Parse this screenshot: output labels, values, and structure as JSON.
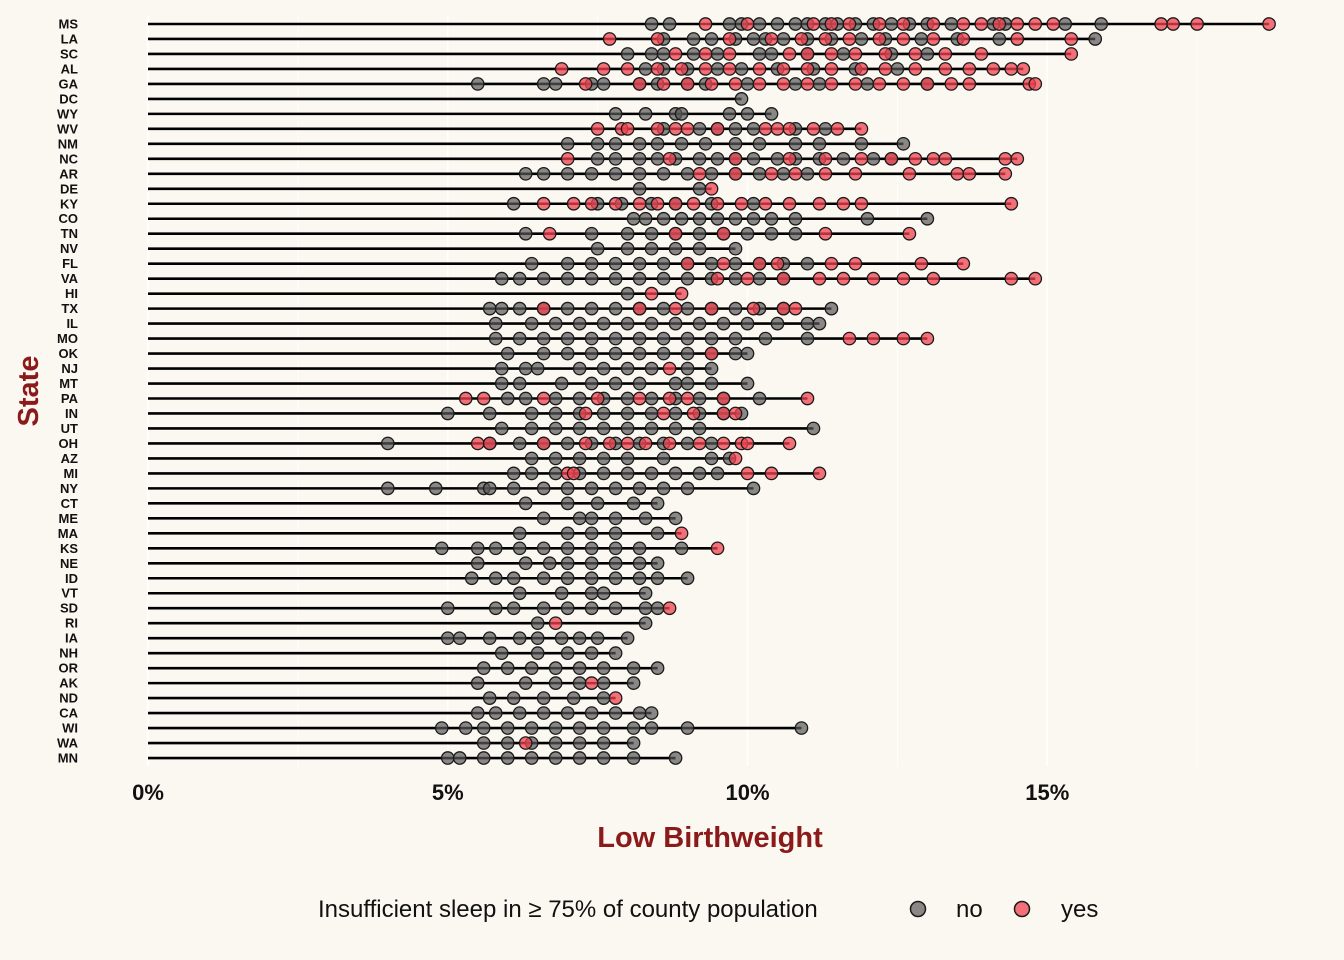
{
  "chart_data": {
    "type": "scatter",
    "title": "",
    "xlabel": "Low Birthweight",
    "ylabel": "State",
    "xlim": [
      0,
      19
    ],
    "x_ticks": [
      0,
      5,
      10,
      15
    ],
    "x_tick_labels": [
      "0%",
      "5%",
      "10%",
      "15%"
    ],
    "grid": true,
    "legend_position": "bottom",
    "legend": {
      "title": "Insufficient sleep in ≥ 75% of county population",
      "entries": [
        {
          "label": "no",
          "color": "#595959"
        },
        {
          "label": "yes",
          "color": "#f0434f"
        }
      ]
    },
    "colors": {
      "background": "#fbf8f1",
      "axis_title": "#8b1a1a",
      "no": "#595959",
      "yes": "#f0434f",
      "segment": "#000000"
    },
    "states": [
      {
        "state": "MS",
        "no": [
          8.4,
          8.7,
          9.7,
          9.9,
          10.2,
          10.5,
          10.8,
          11.0,
          11.3,
          11.5,
          11.8,
          12.1,
          12.4,
          12.7,
          13.0,
          13.4,
          14.1,
          14.3,
          15.3,
          15.9
        ],
        "yes": [
          9.3,
          10.0,
          11.1,
          11.4,
          11.7,
          12.2,
          12.6,
          13.1,
          13.6,
          13.9,
          14.2,
          14.5,
          14.8,
          15.1,
          16.9,
          17.1,
          17.5,
          18.7
        ]
      },
      {
        "state": "LA",
        "no": [
          8.6,
          9.1,
          9.4,
          9.8,
          10.1,
          10.3,
          10.6,
          11.0,
          11.4,
          11.9,
          12.3,
          12.9,
          13.5,
          14.2,
          15.8
        ],
        "yes": [
          7.7,
          8.5,
          9.7,
          10.4,
          10.9,
          11.3,
          11.7,
          12.2,
          12.6,
          13.1,
          13.6,
          14.5,
          15.4
        ]
      },
      {
        "state": "SC",
        "no": [
          8.0,
          8.4,
          8.6,
          9.1,
          9.5,
          10.2,
          10.4,
          11.0,
          11.6,
          12.4,
          13.0
        ],
        "yes": [
          8.8,
          9.3,
          9.7,
          10.7,
          11.0,
          11.4,
          11.8,
          12.3,
          12.8,
          13.3,
          13.9,
          15.4
        ]
      },
      {
        "state": "AL",
        "no": [
          8.3,
          8.6,
          9.0,
          9.5,
          9.9,
          10.5,
          11.1,
          11.8,
          12.5
        ],
        "yes": [
          6.9,
          7.6,
          8.0,
          8.5,
          8.9,
          9.3,
          9.7,
          10.2,
          10.6,
          11.0,
          11.4,
          11.9,
          12.3,
          12.8,
          13.3,
          13.7,
          14.1,
          14.4,
          14.6
        ]
      },
      {
        "state": "GA",
        "no": [
          5.5,
          6.6,
          6.8,
          7.4,
          7.6,
          8.2,
          8.5,
          9.0,
          9.3,
          10.0,
          10.8,
          11.2,
          12.0,
          13.0
        ],
        "yes": [
          7.3,
          8.2,
          8.6,
          9.0,
          9.4,
          9.8,
          10.2,
          10.6,
          11.0,
          11.4,
          11.8,
          12.2,
          12.6,
          13.0,
          13.4,
          13.7,
          14.7,
          14.8
        ]
      },
      {
        "state": "DC",
        "no": [
          9.9
        ],
        "yes": []
      },
      {
        "state": "WY",
        "no": [
          7.8,
          8.3,
          8.8,
          8.9,
          9.7,
          10.0,
          10.4
        ],
        "yes": []
      },
      {
        "state": "WV",
        "no": [
          8.6,
          9.2,
          9.5,
          9.8,
          10.1,
          10.8,
          11.3
        ],
        "yes": [
          7.5,
          7.9,
          8.0,
          8.5,
          8.8,
          9.0,
          9.5,
          10.3,
          10.5,
          10.7,
          11.1,
          11.5,
          11.9
        ]
      },
      {
        "state": "NM",
        "no": [
          7.0,
          7.5,
          7.8,
          8.2,
          8.5,
          8.9,
          9.3,
          9.8,
          10.2,
          10.8,
          11.2,
          11.9,
          12.6
        ],
        "yes": []
      },
      {
        "state": "NC",
        "no": [
          7.5,
          7.8,
          8.2,
          8.5,
          8.8,
          9.2,
          9.5,
          9.8,
          10.1,
          10.5,
          10.8,
          11.2,
          11.6,
          12.1,
          12.4
        ],
        "yes": [
          7.0,
          8.7,
          9.8,
          10.7,
          11.3,
          11.9,
          12.4,
          12.8,
          13.1,
          13.3,
          14.3,
          14.5
        ]
      },
      {
        "state": "AR",
        "no": [
          6.3,
          6.6,
          7.0,
          7.4,
          7.8,
          8.2,
          8.6,
          9.0,
          9.4,
          9.8,
          10.2,
          10.6,
          11.0
        ],
        "yes": [
          9.2,
          9.8,
          10.4,
          10.8,
          11.3,
          11.8,
          12.7,
          13.5,
          13.7,
          14.3
        ]
      },
      {
        "state": "DE",
        "no": [
          8.2,
          9.2
        ],
        "yes": [
          9.4
        ]
      },
      {
        "state": "KY",
        "no": [
          6.1,
          7.5,
          7.9,
          8.4,
          8.8,
          9.4,
          10.1
        ],
        "yes": [
          6.6,
          7.1,
          7.4,
          7.8,
          8.2,
          8.5,
          8.8,
          9.1,
          9.5,
          9.9,
          10.3,
          10.7,
          11.2,
          11.6,
          11.9,
          14.4
        ]
      },
      {
        "state": "CO",
        "no": [
          8.1,
          8.3,
          8.6,
          8.9,
          9.2,
          9.5,
          9.8,
          10.1,
          10.4,
          10.8,
          12.0,
          13.0
        ],
        "yes": []
      },
      {
        "state": "TN",
        "no": [
          6.3,
          7.4,
          8.0,
          8.4,
          8.8,
          9.2,
          9.6,
          10.0,
          10.4,
          10.8
        ],
        "yes": [
          6.7,
          8.8,
          9.6,
          11.3,
          12.7
        ]
      },
      {
        "state": "NV",
        "no": [
          7.5,
          8.0,
          8.4,
          8.8,
          9.2,
          9.8
        ],
        "yes": []
      },
      {
        "state": "FL",
        "no": [
          6.4,
          7.0,
          7.4,
          7.8,
          8.2,
          8.6,
          9.0,
          9.4,
          9.8,
          10.2,
          10.6,
          11.0
        ],
        "yes": [
          9.0,
          9.6,
          10.2,
          10.5,
          11.4,
          11.8,
          12.9,
          13.6
        ]
      },
      {
        "state": "VA",
        "no": [
          5.9,
          6.2,
          6.6,
          7.0,
          7.4,
          7.8,
          8.2,
          8.6,
          9.0,
          9.4,
          9.8,
          10.2,
          10.6
        ],
        "yes": [
          9.5,
          10.0,
          10.6,
          11.2,
          11.6,
          12.1,
          12.6,
          13.1,
          14.4,
          14.8
        ]
      },
      {
        "state": "HI",
        "no": [
          8.0
        ],
        "yes": [
          8.4,
          8.9
        ]
      },
      {
        "state": "TX",
        "no": [
          5.7,
          5.9,
          6.2,
          6.6,
          7.0,
          7.4,
          7.8,
          8.2,
          8.6,
          9.0,
          9.4,
          9.8,
          10.2,
          10.6,
          11.4
        ],
        "yes": [
          6.6,
          8.2,
          8.8,
          9.4,
          10.1,
          10.6,
          10.8
        ]
      },
      {
        "state": "IL",
        "no": [
          5.8,
          6.4,
          6.8,
          7.2,
          7.6,
          8.0,
          8.4,
          8.8,
          9.2,
          9.6,
          10.0,
          10.5,
          11.0,
          11.2
        ],
        "yes": []
      },
      {
        "state": "MO",
        "no": [
          5.8,
          6.2,
          6.6,
          7.0,
          7.4,
          7.8,
          8.2,
          8.6,
          9.0,
          9.4,
          9.8,
          10.3,
          11.0
        ],
        "yes": [
          11.7,
          12.1,
          12.6,
          13.0
        ]
      },
      {
        "state": "OK",
        "no": [
          6.0,
          6.6,
          7.0,
          7.4,
          7.8,
          8.2,
          8.6,
          9.0,
          9.4,
          9.8,
          10.0
        ],
        "yes": [
          9.4
        ]
      },
      {
        "state": "NJ",
        "no": [
          5.9,
          6.3,
          6.5,
          7.2,
          7.6,
          8.0,
          8.4,
          9.0,
          9.4
        ],
        "yes": [
          8.7
        ]
      },
      {
        "state": "MT",
        "no": [
          5.9,
          6.2,
          6.9,
          7.4,
          7.8,
          8.2,
          8.8,
          9.0,
          9.4,
          10.0
        ],
        "yes": []
      },
      {
        "state": "PA",
        "no": [
          6.0,
          6.3,
          6.8,
          7.2,
          7.6,
          8.0,
          8.4,
          8.8,
          9.2,
          9.6,
          10.2
        ],
        "yes": [
          5.3,
          5.6,
          6.6,
          7.5,
          8.2,
          8.7,
          9.0,
          9.6,
          11.0
        ]
      },
      {
        "state": "IN",
        "no": [
          5.0,
          5.7,
          6.4,
          6.8,
          7.2,
          7.6,
          8.0,
          8.4,
          8.8,
          9.2,
          9.6,
          9.9
        ],
        "yes": [
          7.3,
          8.6,
          9.1,
          9.6,
          9.8
        ]
      },
      {
        "state": "UT",
        "no": [
          5.9,
          6.4,
          6.8,
          7.2,
          7.6,
          8.0,
          8.4,
          8.8,
          9.2,
          11.1
        ],
        "yes": []
      },
      {
        "state": "OH",
        "no": [
          4.0,
          5.7,
          6.2,
          6.6,
          7.0,
          7.4,
          7.8,
          8.2,
          8.6,
          9.0,
          9.4
        ],
        "yes": [
          5.5,
          5.7,
          6.6,
          7.3,
          7.7,
          8.0,
          8.3,
          8.7,
          9.2,
          9.6,
          9.9,
          10.0,
          10.7
        ]
      },
      {
        "state": "AZ",
        "no": [
          6.4,
          6.8,
          7.2,
          7.6,
          8.0,
          8.6,
          9.4,
          9.7
        ],
        "yes": [
          9.8
        ]
      },
      {
        "state": "MI",
        "no": [
          6.1,
          6.4,
          6.8,
          7.2,
          7.6,
          8.0,
          8.4,
          8.8,
          9.2,
          9.5
        ],
        "yes": [
          7.0,
          7.1,
          10.0,
          10.4,
          11.2
        ]
      },
      {
        "state": "NY",
        "no": [
          4.0,
          4.8,
          5.6,
          5.7,
          6.1,
          6.6,
          7.0,
          7.4,
          7.8,
          8.2,
          8.6,
          9.0,
          10.1
        ],
        "yes": []
      },
      {
        "state": "CT",
        "no": [
          6.3,
          7.0,
          7.5,
          8.1,
          8.5
        ],
        "yes": []
      },
      {
        "state": "ME",
        "no": [
          6.6,
          7.2,
          7.4,
          7.8,
          8.3,
          8.8
        ],
        "yes": []
      },
      {
        "state": "MA",
        "no": [
          6.2,
          7.0,
          7.4,
          7.8,
          8.5
        ],
        "yes": [
          8.9
        ]
      },
      {
        "state": "KS",
        "no": [
          4.9,
          5.5,
          5.8,
          6.2,
          6.6,
          7.0,
          7.4,
          7.8,
          8.2,
          8.9
        ],
        "yes": [
          9.5
        ]
      },
      {
        "state": "NE",
        "no": [
          5.5,
          6.3,
          6.7,
          7.0,
          7.4,
          7.8,
          8.2,
          8.5
        ],
        "yes": []
      },
      {
        "state": "ID",
        "no": [
          5.4,
          5.8,
          6.1,
          6.6,
          7.0,
          7.4,
          7.8,
          8.2,
          8.5,
          9.0
        ],
        "yes": []
      },
      {
        "state": "VT",
        "no": [
          6.2,
          6.9,
          7.4,
          7.6,
          8.3
        ],
        "yes": []
      },
      {
        "state": "SD",
        "no": [
          5.0,
          5.8,
          6.1,
          6.6,
          7.0,
          7.4,
          7.8,
          8.3,
          8.5
        ],
        "yes": [
          8.7
        ]
      },
      {
        "state": "RI",
        "no": [
          6.5,
          8.3
        ],
        "yes": [
          6.8
        ]
      },
      {
        "state": "IA",
        "no": [
          5.0,
          5.2,
          5.7,
          6.2,
          6.5,
          6.9,
          7.2,
          7.5,
          8.0
        ],
        "yes": []
      },
      {
        "state": "NH",
        "no": [
          5.9,
          6.5,
          7.0,
          7.4,
          7.8
        ],
        "yes": []
      },
      {
        "state": "OR",
        "no": [
          5.6,
          6.0,
          6.4,
          6.8,
          7.2,
          7.6,
          8.1,
          8.5
        ],
        "yes": []
      },
      {
        "state": "AK",
        "no": [
          5.5,
          6.3,
          6.8,
          7.2,
          7.6,
          8.1
        ],
        "yes": [
          7.4
        ]
      },
      {
        "state": "ND",
        "no": [
          5.7,
          6.1,
          6.6,
          7.1,
          7.6
        ],
        "yes": [
          7.8
        ]
      },
      {
        "state": "CA",
        "no": [
          5.5,
          5.8,
          6.2,
          6.6,
          7.0,
          7.4,
          7.8,
          8.2,
          8.4
        ],
        "yes": []
      },
      {
        "state": "WI",
        "no": [
          4.9,
          5.3,
          5.6,
          6.0,
          6.4,
          6.8,
          7.2,
          7.6,
          8.1,
          8.4,
          9.0,
          10.9
        ],
        "yes": []
      },
      {
        "state": "WA",
        "no": [
          5.6,
          6.0,
          6.4,
          6.8,
          7.2,
          7.6,
          8.1
        ],
        "yes": [
          6.3
        ]
      },
      {
        "state": "MN",
        "no": [
          5.0,
          5.2,
          5.6,
          6.0,
          6.4,
          6.8,
          7.2,
          7.6,
          8.1,
          8.8
        ],
        "yes": []
      }
    ]
  }
}
